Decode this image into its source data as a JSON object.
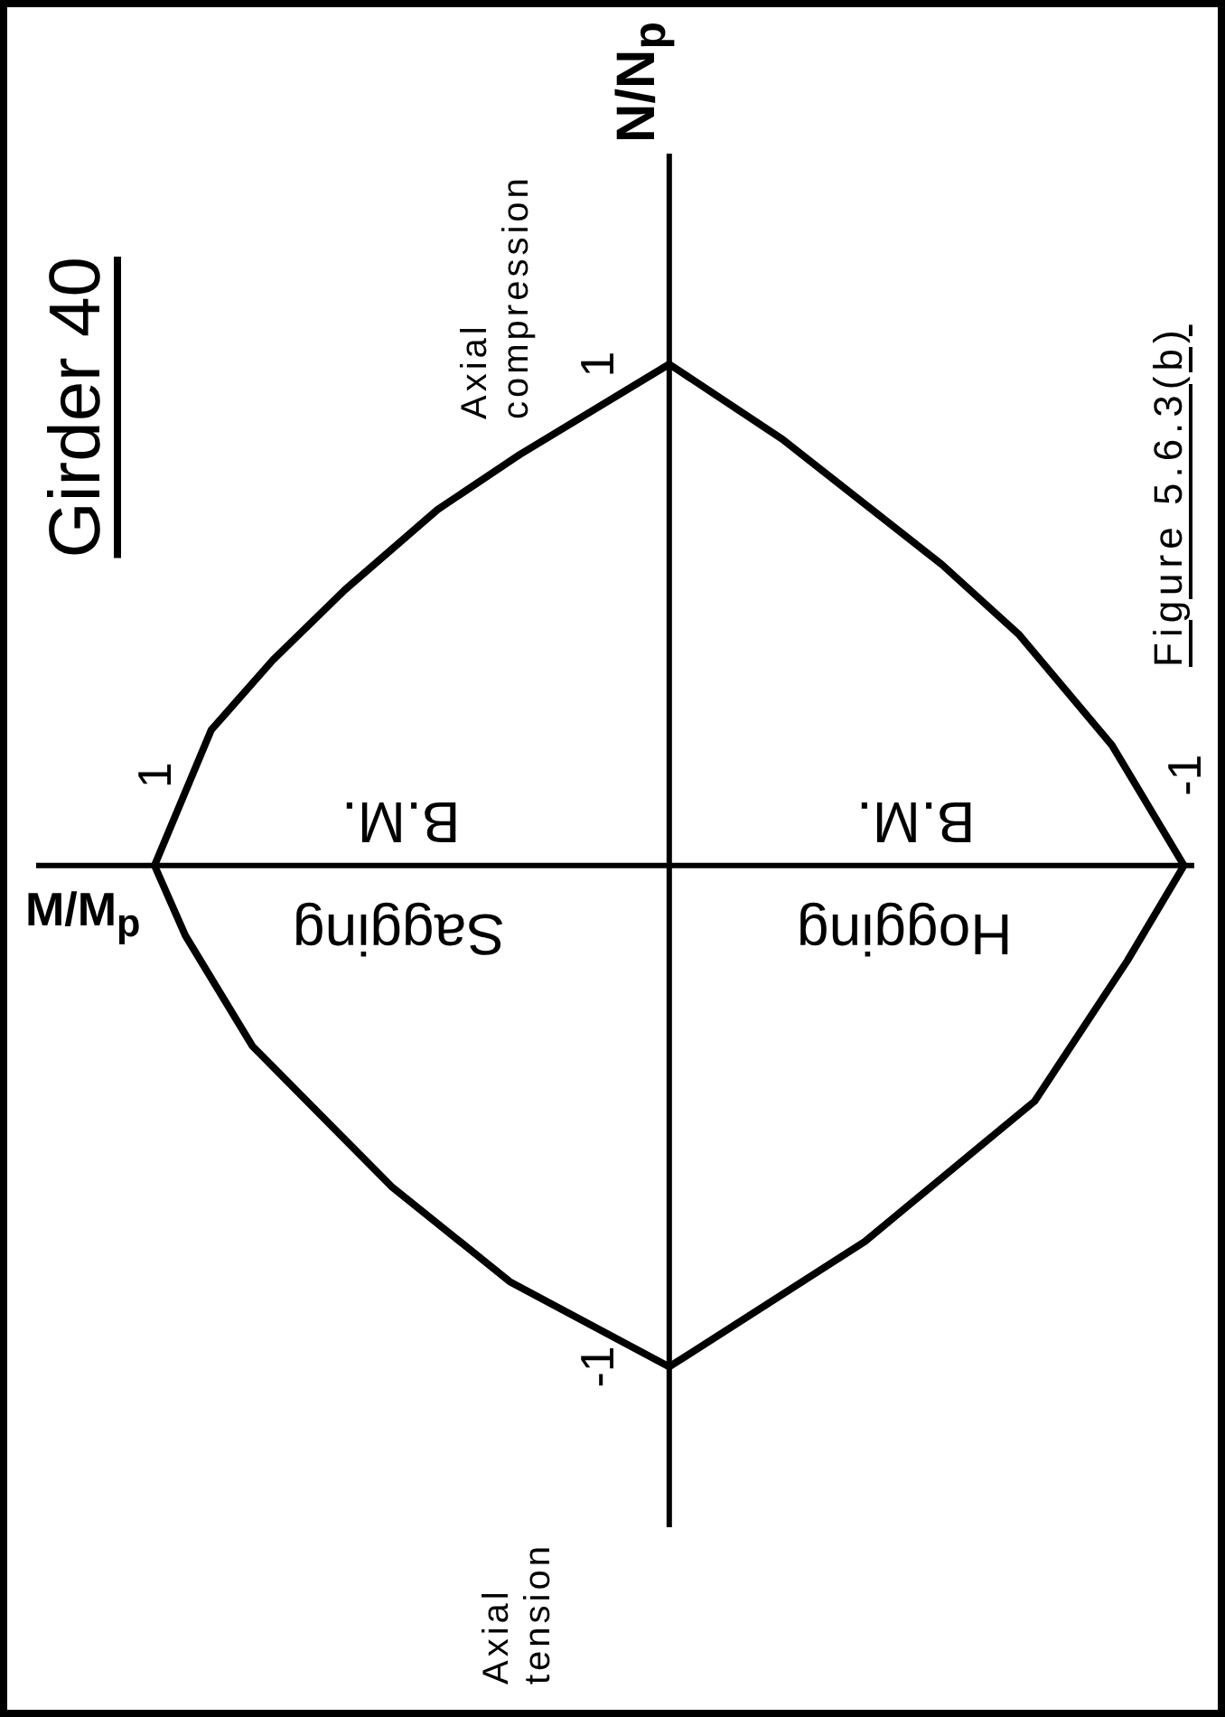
{
  "chart_data": {
    "type": "line",
    "title": "Girder 40",
    "xlabel": "M/M$_{p}$",
    "ylabel": "N/N$_{p}$",
    "xlim": [
      1.23,
      -1.02
    ],
    "ylim": [
      -1.32,
      1.42
    ],
    "xticks": [
      1,
      -1
    ],
    "yticks": [
      -1,
      1
    ],
    "marker": "none",
    "annotations": [
      "Axial compression",
      "Axial tension",
      "Sagging",
      "B.M.",
      "Hogging",
      "B.M.",
      "Figure 5.6.3(b)"
    ],
    "series": [
      {
        "color": "#000000",
        "x": [
          0,
          0.31,
          0.54,
          0.81,
          0.94,
          1,
          0.89,
          0.77,
          0.63,
          0.45,
          0.29,
          0
        ],
        "values": [
          -1,
          -0.83,
          -0.64,
          -0.36,
          -0.14,
          0,
          0.27,
          0.41,
          0.55,
          0.71,
          0.82,
          1
        ]
      },
      {
        "color": "#000000",
        "x": [
          0,
          -0.38,
          -0.71,
          -0.89,
          -1,
          -0.86,
          -0.68,
          -0.53,
          -0.22,
          0
        ],
        "values": [
          -1,
          -0.75,
          -0.47,
          -0.19,
          0,
          0.24,
          0.46,
          0.6,
          0.85,
          1
        ]
      }
    ]
  }
}
